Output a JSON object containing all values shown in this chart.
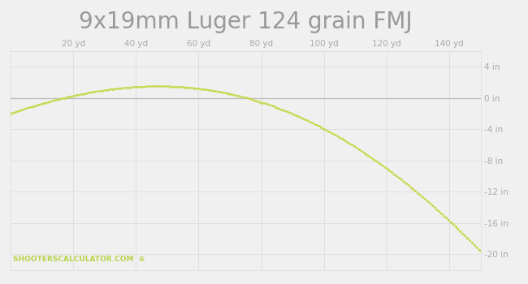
{
  "title": "9x19mm Luger 124 grain FMJ",
  "title_fontsize": 20,
  "title_color": "#999999",
  "background_color": "#f0f0f0",
  "plot_bg_color": "#f0f0f0",
  "line_color": "#c8d84b",
  "line_width": 1.4,
  "x_ticks": [
    20,
    40,
    60,
    80,
    100,
    120,
    140
  ],
  "x_labels": [
    "20 yd",
    "40 yd",
    "60 yd",
    "80 yd",
    "100 yd",
    "120 yd",
    "140 yd"
  ],
  "x_min": 0,
  "x_max": 150,
  "y_ticks": [
    4,
    0,
    -4,
    -8,
    -12,
    -16,
    -20
  ],
  "y_labels": [
    "4 in",
    "0 in",
    "-4 in",
    "-8 in",
    "-12 in",
    "-16 in",
    "-20 in"
  ],
  "y_min": -22,
  "y_max": 6.0,
  "zero_line_color": "#bbbbbb",
  "grid_color": "#dddddd",
  "watermark_text": "SHOOTERSCALCULATOR.COM",
  "watermark_color": "#b8d44a",
  "watermark_fontsize": 6.5,
  "key_x": [
    0,
    30,
    48,
    75,
    90,
    110,
    125,
    140,
    150
  ],
  "key_y": [
    -2.0,
    1.0,
    1.55,
    0.0,
    -2.2,
    -6.0,
    -10.5,
    -16.0,
    -19.5
  ]
}
